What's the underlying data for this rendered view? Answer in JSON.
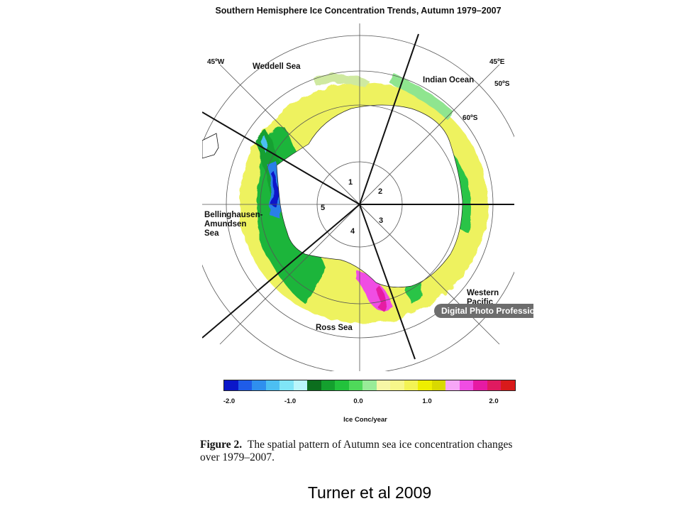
{
  "title": "Southern Hemisphere Ice Concentration Trends, Autumn 1979–2007",
  "map": {
    "longitude_labels": {
      "west": "45ºW",
      "east": "45ºE"
    },
    "latitude_labels": {
      "outer": "50ºS",
      "inner": "60ºS"
    },
    "seas": {
      "weddell": "Weddell Sea",
      "indian": "Indian Ocean",
      "bellingshausen": [
        "Bellinghausen-",
        "Amundsen",
        "Sea"
      ],
      "western_pacific": [
        "Western",
        "Pacific"
      ],
      "ross": "Ross Sea"
    },
    "sectors": [
      "1",
      "2",
      "3",
      "4",
      "5"
    ]
  },
  "badge": "Digital Photo Professional",
  "colorbar": {
    "colors": [
      "#0b17c9",
      "#1f5ce8",
      "#2f8fee",
      "#4cbff2",
      "#7fe5f7",
      "#b9f6fb",
      "#0c6e1e",
      "#14a02e",
      "#22c23c",
      "#4fd95a",
      "#98ec98",
      "#f7f7a6",
      "#f7f78a",
      "#f3f354",
      "#eeee00",
      "#d9d900",
      "#f7a6f7",
      "#f04de3",
      "#e61aa3",
      "#e01a60",
      "#d91a1a"
    ],
    "ticks": [
      "-2.0",
      "-1.0",
      "0.0",
      "1.0",
      "2.0"
    ],
    "label": "Ice Conc/year"
  },
  "caption": {
    "figure": "Figure 2.",
    "text": "The spatial pattern of Autumn sea ice concentration changes over 1979–2007."
  },
  "credit": "Turner et al 2009"
}
